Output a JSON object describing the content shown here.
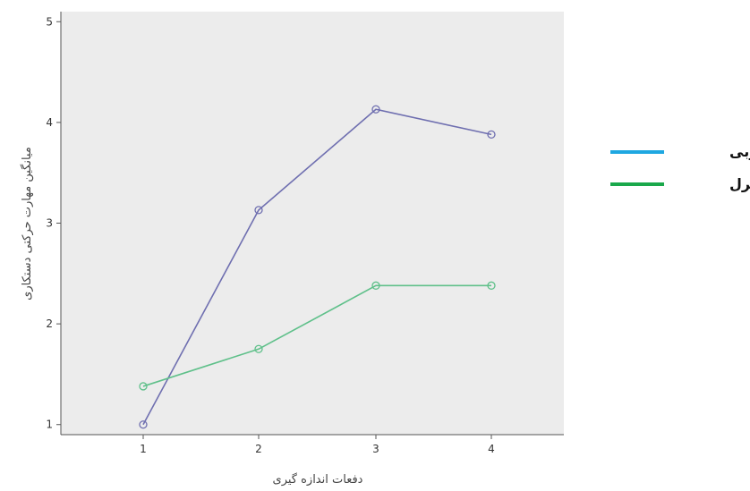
{
  "chart_data": {
    "type": "line",
    "xlabel": "دفعات اندازه گیری",
    "ylabel": "میانگین مهارت حرکتی دستکاری",
    "categories": [
      "1",
      "2",
      "3",
      "4"
    ],
    "ylim": [
      0.9,
      5.1
    ],
    "yticks": [
      1,
      2,
      3,
      4,
      5
    ],
    "grid": false,
    "legend_position": "right",
    "series": [
      {
        "name": "تجربی",
        "values": [
          1.0,
          3.13,
          4.13,
          3.88
        ],
        "color": "#6f6fb0",
        "legend_color": "#1ea7e1"
      },
      {
        "name": "کنترل",
        "values": [
          1.38,
          1.75,
          2.38,
          2.38
        ],
        "color": "#5fc08a",
        "legend_color": "#1aa84b"
      }
    ]
  },
  "colors": {
    "plot_background": "#ececec",
    "axis": "#555555"
  }
}
